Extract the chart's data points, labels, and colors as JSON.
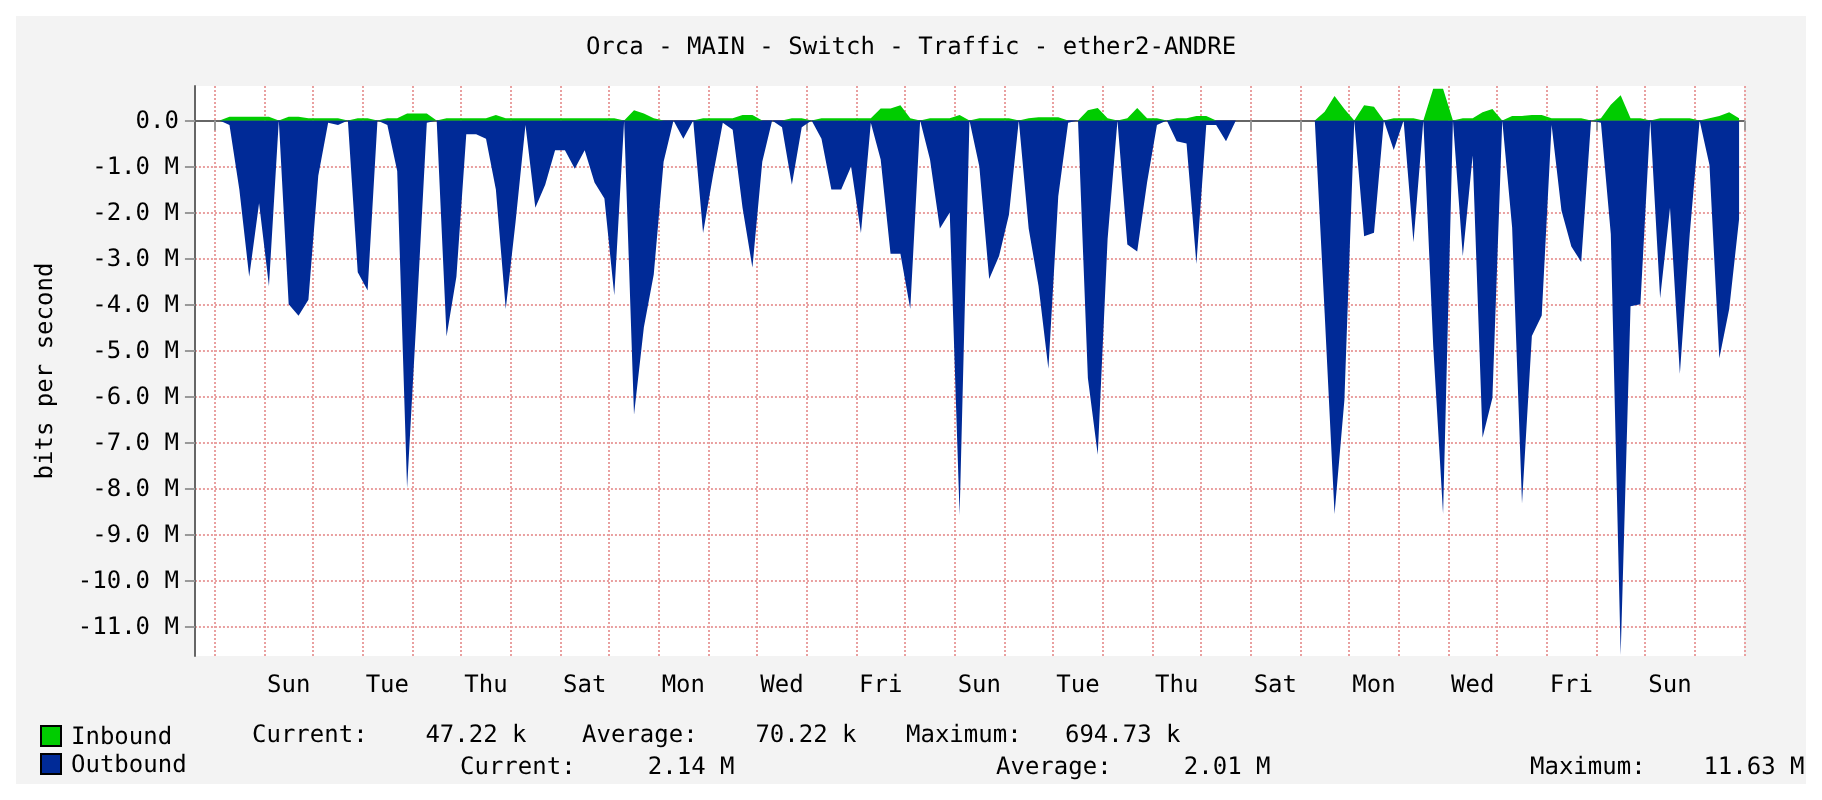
{
  "chart_data": {
    "type": "area",
    "title": "Orca - MAIN - Switch - Traffic - ether2-ANDRE",
    "ylabel": "bits per second",
    "categories": [
      null,
      null,
      null,
      null,
      null,
      null,
      null,
      null,
      null,
      "Sun",
      null,
      null,
      null,
      null,
      null,
      null,
      null,
      null,
      null,
      "Tue",
      null,
      null,
      null,
      null,
      null,
      null,
      null,
      null,
      null,
      "Thu",
      null,
      null,
      null,
      null,
      null,
      null,
      null,
      null,
      null,
      "Sat",
      null,
      null,
      null,
      null,
      null,
      null,
      null,
      null,
      null,
      "Mon",
      null,
      null,
      null,
      null,
      null,
      null,
      null,
      null,
      null,
      "Wed",
      null,
      null,
      null,
      null,
      null,
      null,
      null,
      null,
      null,
      "Fri",
      null,
      null,
      null,
      null,
      null,
      null,
      null,
      null,
      null,
      "Sun",
      null,
      null,
      null,
      null,
      null,
      null,
      null,
      null,
      null,
      "Tue",
      null,
      null,
      null,
      null,
      null,
      null,
      null,
      null,
      null,
      "Thu",
      null,
      null,
      null,
      null,
      null,
      null,
      null,
      null,
      null,
      "Sat",
      null,
      null,
      null,
      null,
      null,
      null,
      null,
      null,
      null,
      "Mon",
      null,
      null,
      null,
      null,
      null,
      null,
      null,
      null,
      null,
      "Wed",
      null,
      null,
      null,
      null,
      null,
      null,
      null,
      null,
      null,
      "Fri",
      null,
      null,
      null,
      null,
      null,
      null,
      null,
      null,
      null,
      "Sun",
      null,
      null,
      null,
      null,
      null,
      null,
      null
    ],
    "ylim": [
      -11.65,
      0.75
    ],
    "yticks": [
      {
        "value": 0,
        "label": "0.0"
      },
      {
        "value": -1,
        "label": "-1.0 M"
      },
      {
        "value": -2,
        "label": "-2.0 M"
      },
      {
        "value": -3,
        "label": "-3.0 M"
      },
      {
        "value": -4,
        "label": "-4.0 M"
      },
      {
        "value": -5,
        "label": "-5.0 M"
      },
      {
        "value": -6,
        "label": "-6.0 M"
      },
      {
        "value": -7,
        "label": "-7.0 M"
      },
      {
        "value": -8,
        "label": "-8.0 M"
      },
      {
        "value": -9,
        "label": "-9.0 M"
      },
      {
        "value": -10,
        "label": "-10.0 M"
      },
      {
        "value": -11,
        "label": "-11.0 M"
      }
    ],
    "grid": true,
    "legend": "bottom left",
    "annotations": [
      "Current:    47.22 k",
      "Average:    70.22 k",
      "Maximum:   694.73 k",
      "Current:     2.14 M",
      "Average:     2.01 M",
      "Maximum:    11.63 M"
    ],
    "series": [
      {
        "name": "Outbound",
        "color": "#002a97",
        "values": [
          0,
          0,
          0,
          -0.1,
          -1.5,
          -3.4,
          -1.8,
          -3.6,
          0,
          -4.0,
          -4.25,
          -3.9,
          -1.2,
          -0.05,
          -0.1,
          0,
          -3.3,
          -3.7,
          0,
          -0.1,
          -1.1,
          -8.0,
          -4.1,
          -0.05,
          0,
          -4.7,
          -3.4,
          -0.3,
          -0.3,
          -0.4,
          -1.5,
          -4.1,
          -2.2,
          -0.1,
          -1.9,
          -1.4,
          -0.65,
          -0.65,
          -1.05,
          -0.65,
          -1.35,
          -1.7,
          -3.8,
          0,
          -6.4,
          -4.5,
          -3.35,
          -0.9,
          0,
          -0.4,
          0,
          -2.45,
          -1.2,
          -0.05,
          -0.2,
          -1.9,
          -3.2,
          -0.9,
          0,
          -0.15,
          -1.4,
          -0.15,
          0,
          -0.4,
          -1.5,
          -1.5,
          -1.0,
          -2.45,
          -0.05,
          -0.85,
          -2.9,
          -2.9,
          -4.1,
          0,
          -0.85,
          -2.35,
          -2.0,
          -8.58,
          0,
          -1.0,
          -3.45,
          -2.95,
          -2.05,
          0,
          -2.35,
          -3.6,
          -5.4,
          -1.65,
          -0.05,
          0,
          -5.6,
          -7.27,
          -2.58,
          0,
          -2.7,
          -2.85,
          -1.35,
          -0.1,
          0,
          -0.45,
          -0.5,
          -3.12,
          -0.1,
          -0.1,
          -0.45,
          0,
          0,
          0,
          0,
          0,
          0,
          0,
          0,
          0,
          -4.2,
          -8.56,
          -6.08,
          0,
          -2.52,
          -2.44,
          0,
          -0.64,
          0,
          -2.65,
          0,
          -4.9,
          -8.56,
          0,
          -2.95,
          -0.76,
          -6.9,
          -6.04,
          0,
          -2.33,
          -8.33,
          -4.69,
          -4.24,
          -0.1,
          -1.96,
          -2.74,
          -3.08,
          0,
          -0.05,
          -2.47,
          -11.63,
          -4.04,
          -4.0,
          0,
          -3.87,
          -1.9,
          -5.51,
          -2.47,
          0,
          -0.97,
          -5.17,
          -4.1,
          -2.15
        ]
      },
      {
        "name": "Inbound",
        "color": "#00cc00",
        "values": [
          0,
          0,
          0,
          0.08,
          0.08,
          0.08,
          0.08,
          0.08,
          0,
          0.08,
          0.08,
          0.05,
          0.05,
          0.05,
          0.05,
          0,
          0.05,
          0.05,
          0,
          0.05,
          0.05,
          0.15,
          0.15,
          0.15,
          0,
          0.05,
          0.05,
          0.05,
          0.05,
          0.05,
          0.12,
          0.05,
          0.05,
          0.05,
          0.05,
          0.05,
          0.05,
          0.05,
          0.05,
          0.05,
          0.05,
          0.05,
          0.05,
          0,
          0.22,
          0.15,
          0.05,
          0,
          0,
          0,
          0,
          0.05,
          0.05,
          0.05,
          0.05,
          0.12,
          0.12,
          0,
          0,
          0,
          0.05,
          0.05,
          0,
          0.05,
          0.05,
          0.05,
          0.05,
          0.05,
          0.05,
          0.26,
          0.26,
          0.33,
          0.05,
          0,
          0.05,
          0.05,
          0.05,
          0.12,
          0,
          0.05,
          0.05,
          0.05,
          0.05,
          0,
          0.05,
          0.07,
          0.07,
          0.07,
          0,
          0,
          0.22,
          0.27,
          0.05,
          0,
          0.05,
          0.27,
          0.05,
          0.05,
          0,
          0.05,
          0.05,
          0.1,
          0.1,
          0,
          0,
          0,
          0,
          0,
          0,
          0,
          0,
          0,
          0,
          0,
          0.19,
          0.53,
          0.25,
          0,
          0.33,
          0.3,
          0,
          0.05,
          0.05,
          0.05,
          0,
          0.69,
          0.69,
          0,
          0.05,
          0.05,
          0.18,
          0.25,
          0,
          0.1,
          0.1,
          0.12,
          0.12,
          0.05,
          0.05,
          0.05,
          0.05,
          0,
          0.05,
          0.34,
          0.55,
          0.05,
          0.05,
          0,
          0.05,
          0.05,
          0.05,
          0.05,
          0,
          0.05,
          0.1,
          0.18,
          0.05
        ]
      }
    ]
  }
}
